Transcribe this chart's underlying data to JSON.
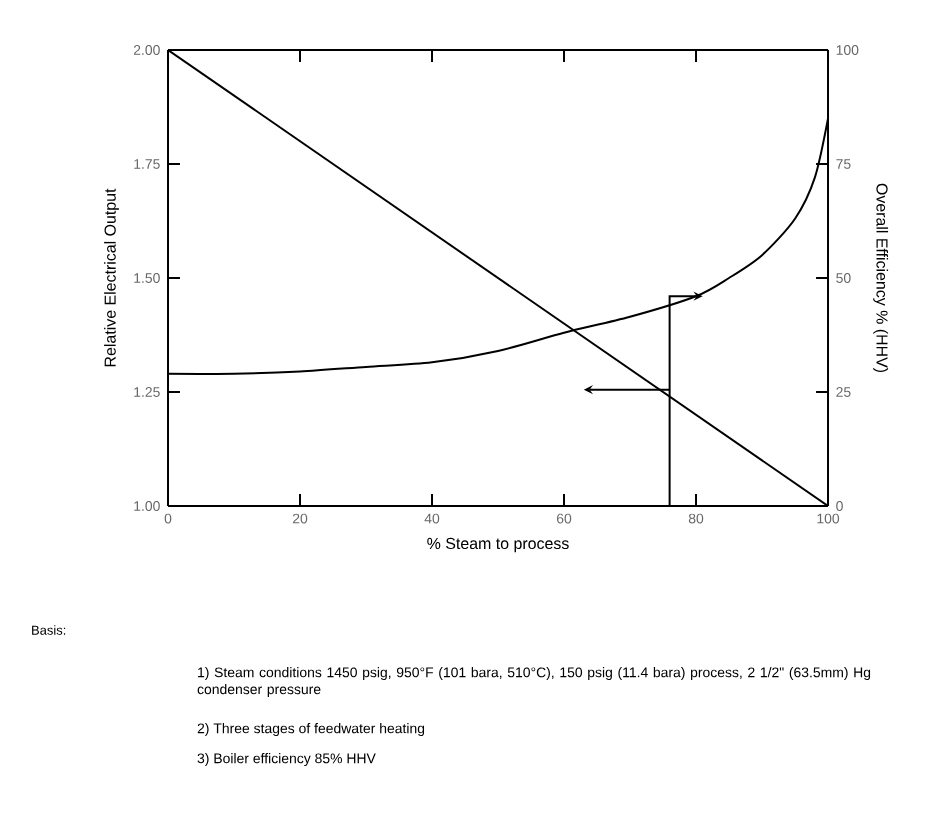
{
  "chart_data": {
    "type": "line",
    "xlabel": "% Steam to process",
    "ylabel": "Relative Electrical Output",
    "y2label": "Overall Efficiency % (HHV)",
    "xlim": [
      0,
      100
    ],
    "xticks": [
      0,
      20,
      40,
      60,
      80,
      100
    ],
    "ylim": [
      1.0,
      2.0
    ],
    "yticks": [
      {
        "value": 1.0,
        "label": "1.00"
      },
      {
        "value": 1.25,
        "label": "1.25"
      },
      {
        "value": 1.5,
        "label": "1.50"
      },
      {
        "value": 1.75,
        "label": "1.75"
      },
      {
        "value": 2.0,
        "label": "2.00"
      }
    ],
    "y2lim": [
      0,
      100
    ],
    "y2ticks": [
      0,
      25,
      50,
      75,
      100
    ],
    "grid": false,
    "marker": "none",
    "line_style": "solid",
    "series": [
      {
        "color": "#000000",
        "x": [
          0,
          100
        ],
        "values": [
          2.0,
          1.0
        ]
      },
      {
        "color": "#000000",
        "axis": "y2",
        "x": [
          0,
          10,
          20,
          30,
          40,
          50,
          60,
          70,
          80,
          85,
          90,
          95,
          98,
          100
        ],
        "values": [
          29,
          29,
          29.5,
          30.5,
          31.5,
          34,
          38,
          41.5,
          46,
          50,
          55,
          63,
          72,
          85
        ]
      }
    ],
    "annotations": [
      "Basis:",
      "1) Steam conditions 1450 psig, 950°F (101 bara, 510°C), 150 psig (11.4 bara) process, 2 1/2\" (63.5mm) Hg condenser pressure",
      "2) Three stages of feedwater heating",
      "3) Boiler efficiency 85% HHV"
    ]
  }
}
